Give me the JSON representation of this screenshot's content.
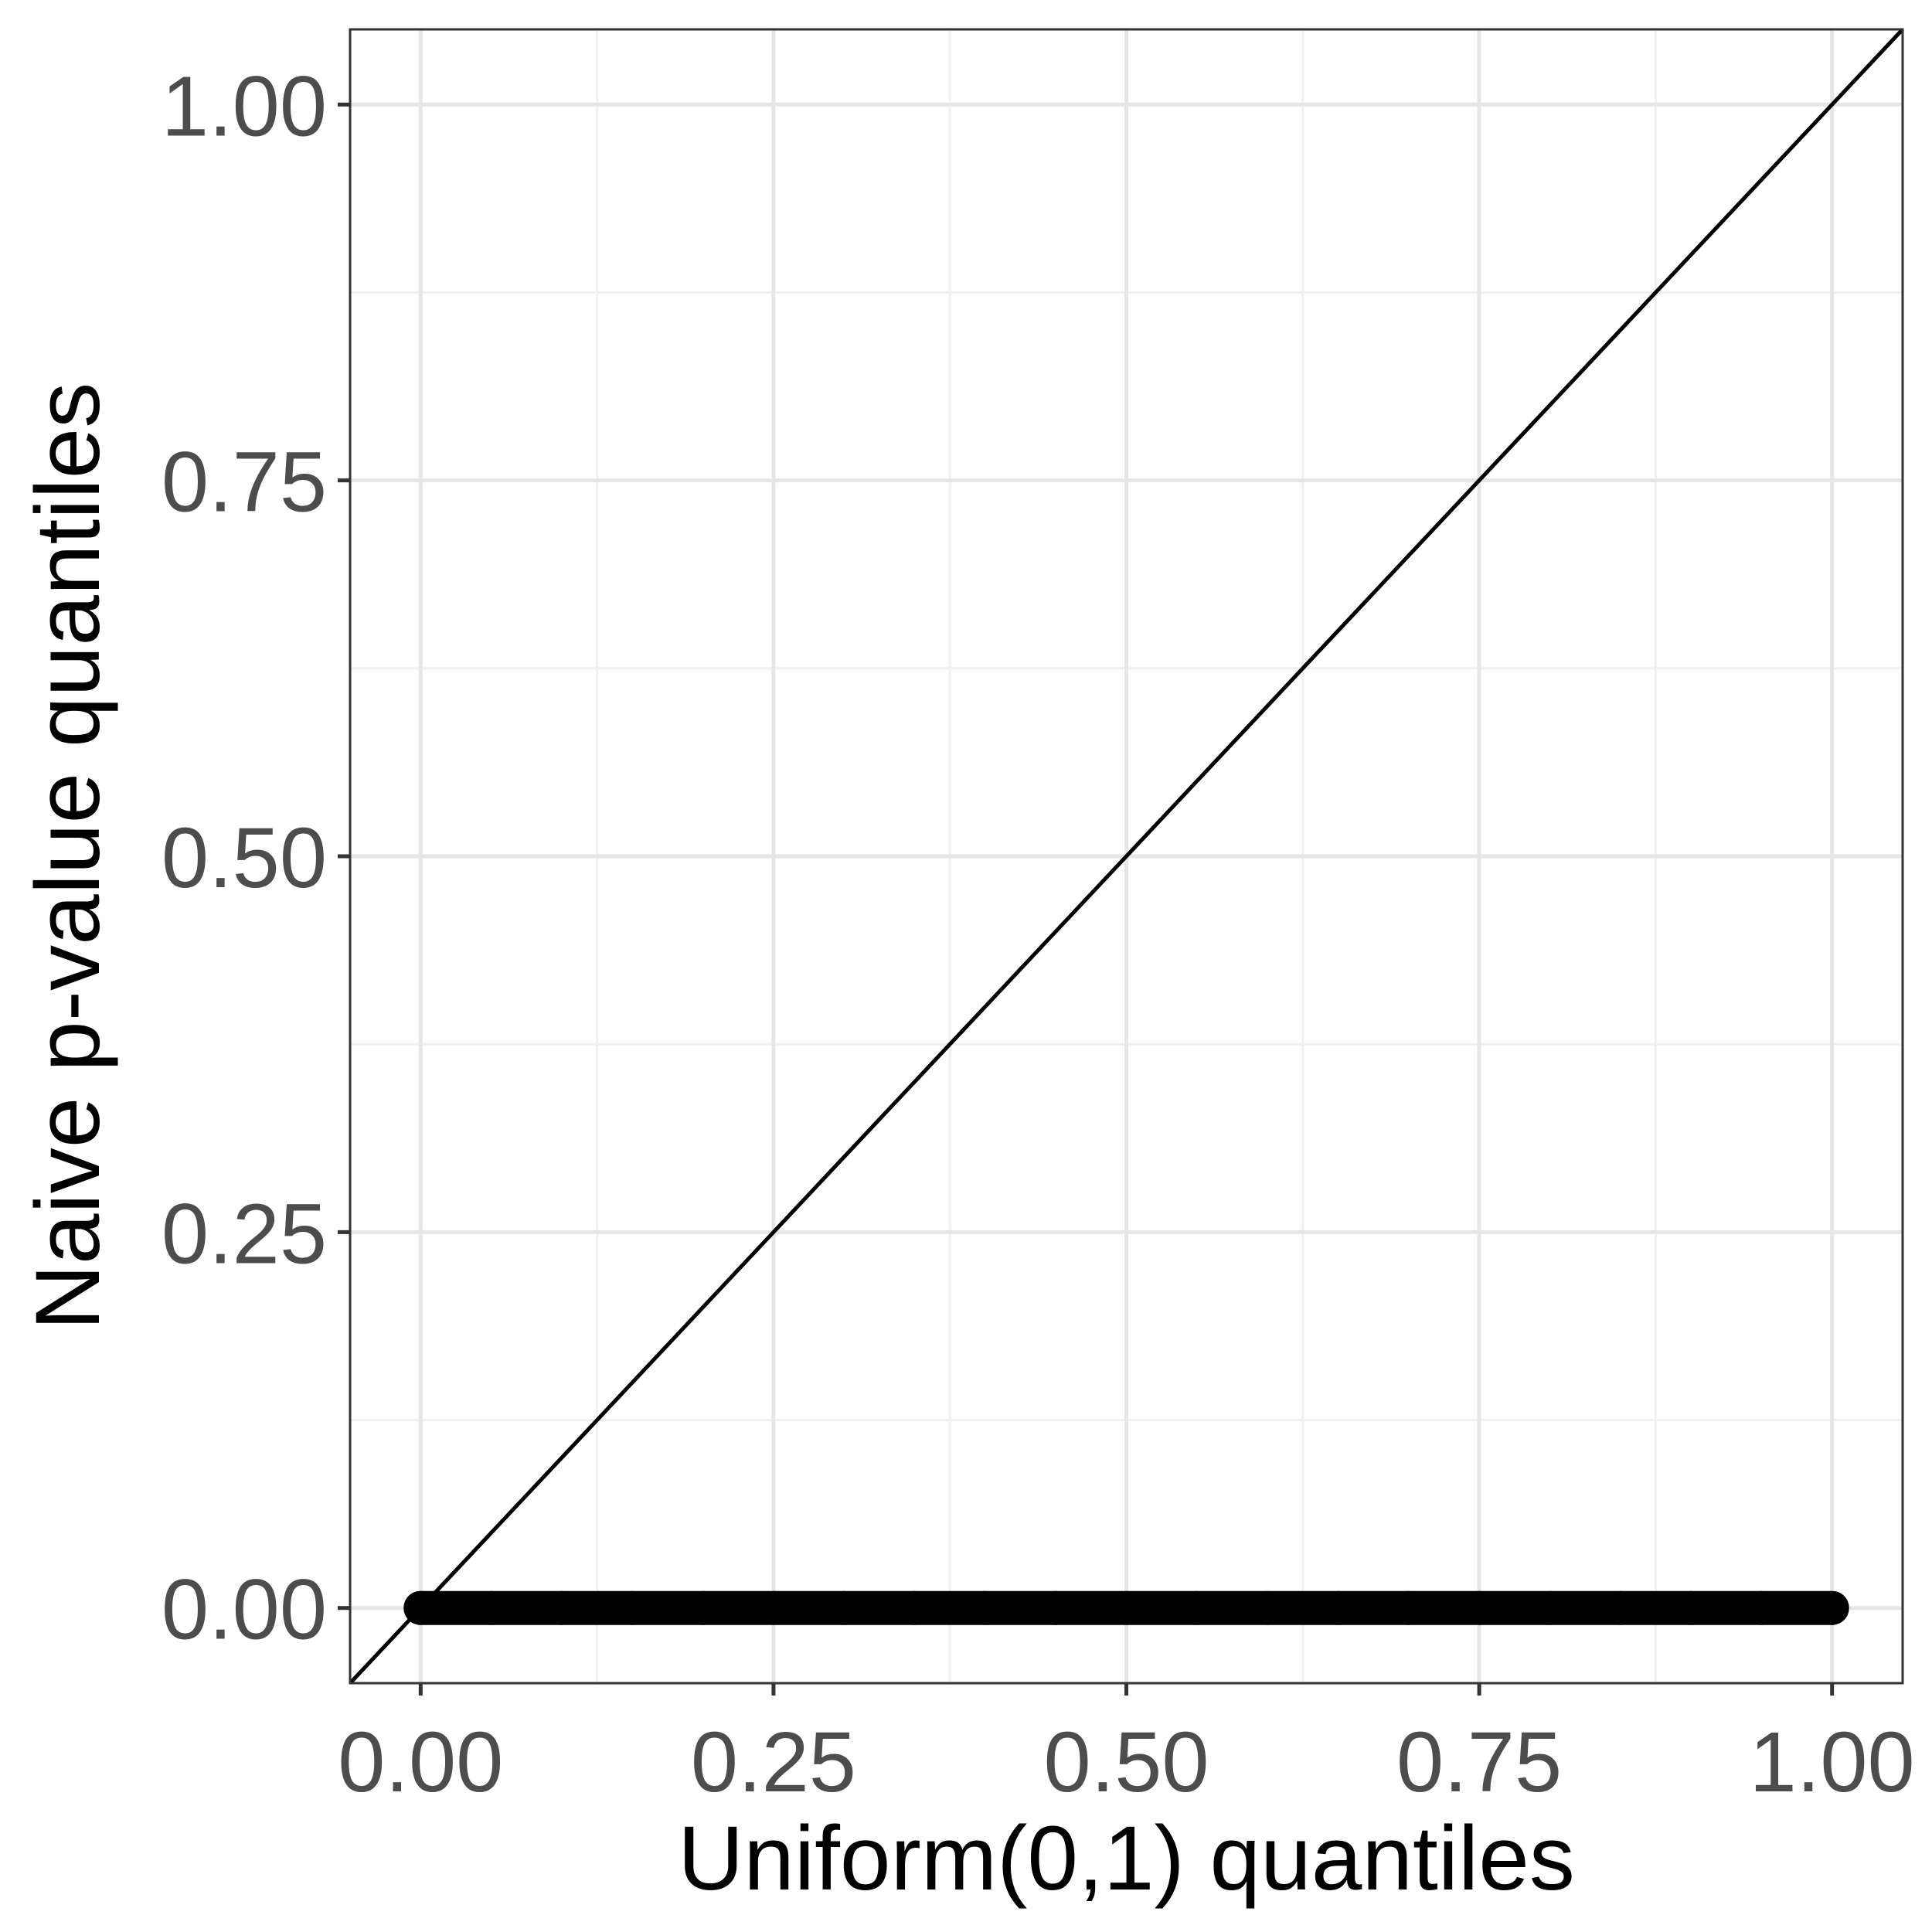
{
  "chart_data": {
    "type": "scatter",
    "xlabel": "Uniform(0,1) quantiles",
    "ylabel": "Naive p-value quantiles",
    "xlim": [
      -0.05,
      1.05
    ],
    "ylim": [
      -0.05,
      1.05
    ],
    "x_ticks": [
      0,
      0.25,
      0.5,
      0.75,
      1
    ],
    "x_tick_labels": [
      "0.00",
      "0.25",
      "0.50",
      "0.75",
      "1.00"
    ],
    "y_ticks": [
      0,
      0.25,
      0.5,
      0.75,
      1
    ],
    "y_tick_labels": [
      "0.00",
      "0.25",
      "0.50",
      "0.75",
      "1.00"
    ],
    "x_minor_ticks": [
      0.125,
      0.375,
      0.625,
      0.875
    ],
    "y_minor_ticks": [
      0.125,
      0.375,
      0.625,
      0.875
    ],
    "grid": true,
    "reference_line": {
      "slope": 1,
      "intercept": 0
    },
    "series": [
      {
        "x": [
          0,
          0.05,
          0.1,
          0.15,
          0.2,
          0.25,
          0.3,
          0.35,
          0.4,
          0.45,
          0.5,
          0.55,
          0.6,
          0.65,
          0.7,
          0.75,
          0.8,
          0.85,
          0.9,
          0.95,
          1
        ],
        "y": [
          0,
          0,
          0,
          0,
          0,
          0,
          0,
          0,
          0,
          0,
          0,
          0,
          0,
          0,
          0,
          0,
          0,
          0,
          0,
          0,
          0
        ]
      }
    ],
    "colors": {
      "points": "#000000",
      "reference_line": "#000000",
      "grid_major": "#e6e6e6",
      "grid_minor": "#f0f0f0",
      "panel_border": "#333333",
      "tick_label": "#4d4d4d"
    }
  }
}
